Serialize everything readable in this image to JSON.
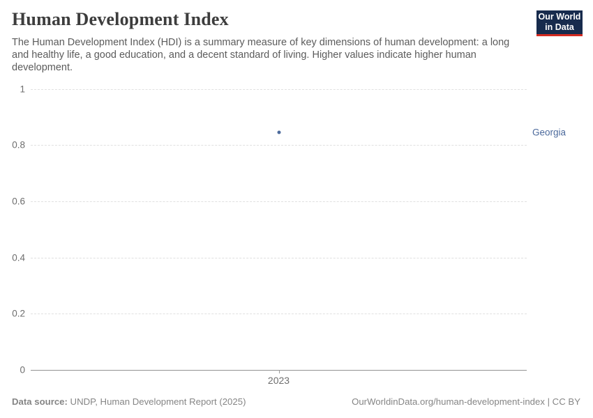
{
  "header": {
    "title": "Human Development Index",
    "subtitle": "The Human Development Index (HDI) is a summary measure of key dimensions of human development: a long and healthy life, a good education, and a decent standard of living. Higher values indicate higher human development.",
    "logo": {
      "line1": "Our World",
      "line2": "in Data"
    }
  },
  "chart_data": {
    "type": "scatter",
    "title": "Human Development Index",
    "x": [
      2023
    ],
    "x_ticks": [
      "2023"
    ],
    "series": [
      {
        "name": "Georgia",
        "values": [
          0.844
        ]
      }
    ],
    "ylim": [
      0,
      1
    ],
    "y_ticks": [
      0,
      0.2,
      0.4,
      0.6,
      0.8,
      1
    ],
    "xlabel": "",
    "ylabel": "",
    "grid": "horizontal-dashed",
    "legend_position": "right-of-point",
    "point_color": "#4c6a9c",
    "label_color": "#4c6a9c"
  },
  "footer": {
    "source_label": "Data source:",
    "source_text": " UNDP, Human Development Report (2025)",
    "link_text": "OurWorldinData.org/human-development-index | CC BY"
  },
  "colors": {
    "background": "#ffffff",
    "title": "#3d3d3d",
    "subtitle": "#5b5b5b",
    "axis_text": "#6e6e6e",
    "gridline": "#e0e0e0",
    "axis_line": "#929292",
    "footer_text": "#858585",
    "accent": "#4c6a9c",
    "logo_bg": "#172b4d",
    "logo_bar": "#d42b21"
  }
}
